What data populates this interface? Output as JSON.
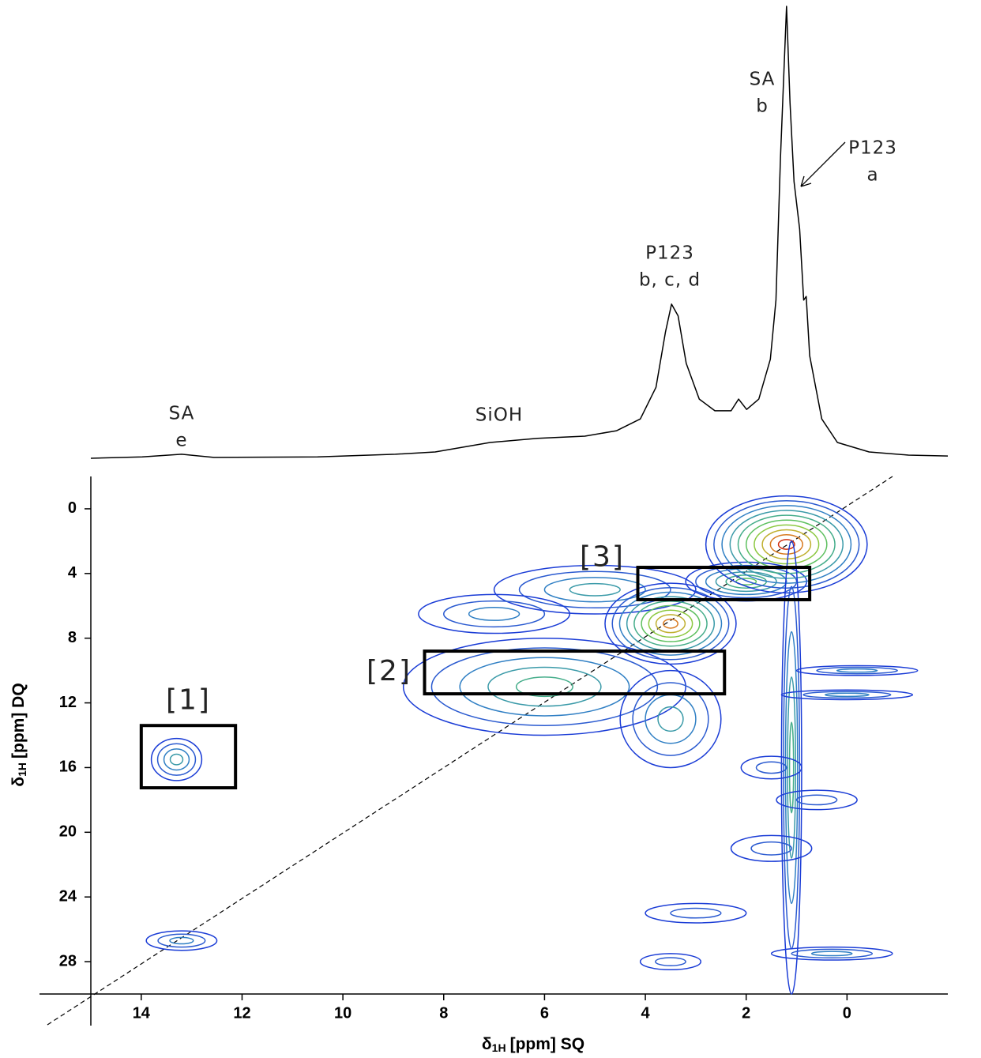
{
  "chart_data": [
    {
      "type": "line",
      "x": [
        15.0,
        13.98,
        13.2,
        12.56,
        10.5,
        8.96,
        8.17,
        7.08,
        6.14,
        5.2,
        4.57,
        4.1,
        3.79,
        3.6,
        3.48,
        3.35,
        3.19,
        2.93,
        2.62,
        2.3,
        2.15,
        1.99,
        1.75,
        1.52,
        1.41,
        1.32,
        1.2,
        1.13,
        1.05,
        0.94,
        0.86,
        0.81,
        0.74,
        0.5,
        0.19,
        -0.44,
        -1.22,
        -2.0
      ],
      "values": [
        0,
        0.3,
        0.9,
        0.2,
        0.3,
        0.9,
        1.4,
        3.5,
        4.4,
        4.9,
        6.1,
        8.7,
        15.7,
        28,
        34.1,
        31.5,
        21,
        13.1,
        10.5,
        10.5,
        13.1,
        10.8,
        13.1,
        21.9,
        35,
        66.4,
        100,
        78.7,
        61.2,
        50.7,
        35,
        35.8,
        22.7,
        8.7,
        3.5,
        1.4,
        0.7,
        0.5
      ],
      "color": "#000000",
      "xlim": [
        15,
        -2
      ],
      "ylim": [
        0,
        100
      ],
      "annotations": [
        {
          "lines": [
            "SA",
            "e"
          ]
        },
        {
          "lines": [
            "SiOH"
          ]
        },
        {
          "lines": [
            "P123",
            "b, c, d"
          ]
        },
        {
          "lines": [
            "SA",
            "b"
          ]
        },
        {
          "lines": [
            "P123",
            "a"
          ]
        }
      ]
    },
    {
      "type": "contour",
      "xlabel": {
        "symbol": "δ",
        "subscript": "1H",
        "text": "[ppm] SQ"
      },
      "ylabel": {
        "symbol": "δ",
        "subscript": "1H",
        "text": "[ppm] DQ"
      },
      "xlim": [
        15,
        -2
      ],
      "ylim": [
        -2,
        30
      ],
      "xticks": [
        14,
        12,
        10,
        8,
        6,
        4,
        2,
        0
      ],
      "yticks": [
        0,
        4,
        8,
        12,
        16,
        20,
        24,
        28
      ],
      "peaks": [
        {
          "x": 13.3,
          "y": 15.5,
          "wx": 0.5,
          "wy": 1.3,
          "intensity": 4
        },
        {
          "x": 13.2,
          "y": 26.7,
          "wx": 0.7,
          "wy": 0.6,
          "intensity": 3
        },
        {
          "x": 6.0,
          "y": 11.0,
          "wx": 2.8,
          "wy": 3.0,
          "intensity": 5
        },
        {
          "x": 5.0,
          "y": 5.0,
          "wx": 2.0,
          "wy": 1.5,
          "intensity": 4
        },
        {
          "x": 7.0,
          "y": 6.5,
          "wx": 1.5,
          "wy": 1.2,
          "intensity": 3
        },
        {
          "x": 3.5,
          "y": 13.0,
          "wx": 1.0,
          "wy": 3.0,
          "intensity": 4
        },
        {
          "x": 3.5,
          "y": 7.1,
          "wx": 1.3,
          "wy": 2.5,
          "intensity": 9
        },
        {
          "x": 2.0,
          "y": 4.5,
          "wx": 1.2,
          "wy": 1.2,
          "intensity": 6
        },
        {
          "x": 1.2,
          "y": 2.2,
          "wx": 1.6,
          "wy": 3.0,
          "intensity": 10
        },
        {
          "x": 1.1,
          "y": 16.0,
          "wx": 0.2,
          "wy": 14.0,
          "intensity": 5
        },
        {
          "x": -0.2,
          "y": 10.0,
          "wx": 1.2,
          "wy": 0.3,
          "intensity": 3
        },
        {
          "x": 0.0,
          "y": 11.5,
          "wx": 1.3,
          "wy": 0.3,
          "intensity": 3
        },
        {
          "x": 0.3,
          "y": 27.5,
          "wx": 1.2,
          "wy": 0.4,
          "intensity": 3
        },
        {
          "x": 3.0,
          "y": 25.0,
          "wx": 1.0,
          "wy": 0.6,
          "intensity": 2
        },
        {
          "x": 1.5,
          "y": 21.0,
          "wx": 0.8,
          "wy": 0.8,
          "intensity": 2
        },
        {
          "x": 0.6,
          "y": 18.0,
          "wx": 0.8,
          "wy": 0.6,
          "intensity": 2
        },
        {
          "x": 3.5,
          "y": 28.0,
          "wx": 0.6,
          "wy": 0.5,
          "intensity": 2
        },
        {
          "x": 1.5,
          "y": 16.0,
          "wx": 0.6,
          "wy": 0.7,
          "intensity": 2
        }
      ],
      "regions": [
        {
          "label": "[1]",
          "x": [
            14.0,
            12.13
          ],
          "y": [
            13.4,
            17.25
          ]
        },
        {
          "label": "[2]",
          "x": [
            8.38,
            2.43
          ],
          "y": [
            8.8,
            11.44
          ]
        },
        {
          "label": "[3]",
          "x": [
            4.15,
            0.74
          ],
          "y": [
            3.62,
            5.62
          ]
        }
      ]
    }
  ]
}
